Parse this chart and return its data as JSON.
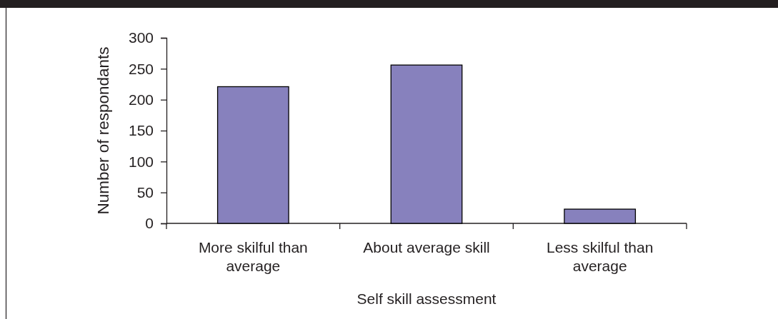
{
  "chart_data": {
    "type": "bar",
    "xlabel": "Self skill assessment",
    "ylabel": "Number of respondants",
    "categories": [
      "More skilful than average",
      "About average skill",
      "Less skilful than average"
    ],
    "values": [
      221,
      256,
      23
    ],
    "color": "#8781bd",
    "ylim": [
      0,
      300
    ],
    "yticks": [
      0,
      50,
      100,
      150,
      200,
      250,
      300
    ]
  }
}
